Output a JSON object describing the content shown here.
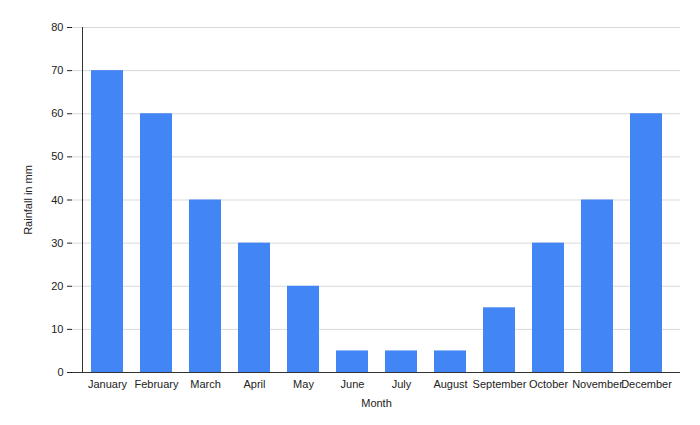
{
  "chart_data": {
    "type": "bar",
    "x_label": "Month",
    "y_label": "Rainfall in mm",
    "categories": [
      "January",
      "February",
      "March",
      "April",
      "May",
      "June",
      "July",
      "August",
      "September",
      "October",
      "November",
      "December"
    ],
    "values": [
      70,
      60,
      40,
      30,
      20,
      5,
      5,
      5,
      15,
      30,
      40,
      60
    ],
    "color": "#4285f4",
    "ylim": [
      0,
      80
    ],
    "yticks": [
      0,
      10,
      20,
      30,
      40,
      50,
      60,
      70,
      80
    ],
    "grid": true
  }
}
